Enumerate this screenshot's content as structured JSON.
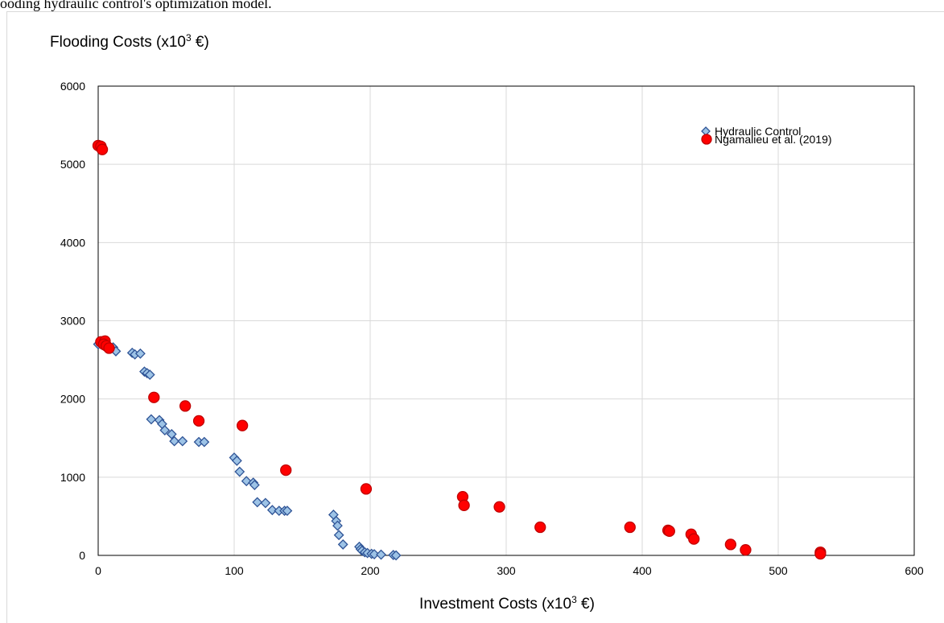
{
  "caption_text": "ooding hydraulic control's optimization model.",
  "chart_data": {
    "type": "scatter",
    "title": "",
    "ylabel_main": "Flooding Costs (x10",
    "ylabel_sup": "3",
    "ylabel_tail": " €)",
    "xlabel_main": "Investment Costs (x10",
    "xlabel_sup": "3",
    "xlabel_tail": " €)",
    "xlim": [
      0,
      600
    ],
    "ylim": [
      0,
      6000
    ],
    "x_ticks": [
      "0",
      "100",
      "200",
      "300",
      "400",
      "500",
      "600"
    ],
    "y_ticks": [
      "0",
      "1000",
      "2000",
      "3000",
      "4000",
      "5000",
      "6000"
    ],
    "grid": true,
    "legend_position": "top-right",
    "series": [
      {
        "name": "Hydraulic Control",
        "marker": "diamond",
        "fill": "#9dc3e6",
        "stroke": "#2f5496",
        "points": [
          [
            0,
            2700
          ],
          [
            3,
            2690
          ],
          [
            5,
            2700
          ],
          [
            7,
            2690
          ],
          [
            11,
            2660
          ],
          [
            13,
            2610
          ],
          [
            25,
            2590
          ],
          [
            27,
            2570
          ],
          [
            31,
            2580
          ],
          [
            34,
            2350
          ],
          [
            36,
            2330
          ],
          [
            38,
            2310
          ],
          [
            39,
            1740
          ],
          [
            45,
            1730
          ],
          [
            47,
            1680
          ],
          [
            49,
            1600
          ],
          [
            54,
            1550
          ],
          [
            56,
            1460
          ],
          [
            62,
            1460
          ],
          [
            74,
            1450
          ],
          [
            78,
            1450
          ],
          [
            100,
            1250
          ],
          [
            102,
            1210
          ],
          [
            104,
            1070
          ],
          [
            109,
            950
          ],
          [
            114,
            930
          ],
          [
            115,
            900
          ],
          [
            117,
            680
          ],
          [
            123,
            670
          ],
          [
            128,
            580
          ],
          [
            133,
            570
          ],
          [
            137,
            570
          ],
          [
            139,
            570
          ],
          [
            173,
            520
          ],
          [
            175,
            440
          ],
          [
            176,
            380
          ],
          [
            177,
            260
          ],
          [
            180,
            140
          ],
          [
            192,
            110
          ],
          [
            193,
            80
          ],
          [
            194,
            60
          ],
          [
            196,
            40
          ],
          [
            198,
            30
          ],
          [
            201,
            20
          ],
          [
            203,
            15
          ],
          [
            208,
            10
          ],
          [
            217,
            5
          ],
          [
            219,
            0
          ]
        ]
      },
      {
        "name": "Ngamalieu et al. (2019)",
        "marker": "circle",
        "fill": "#ff0000",
        "stroke": "#c00000",
        "points": [
          [
            0,
            5240
          ],
          [
            2,
            5230
          ],
          [
            3,
            5190
          ],
          [
            2,
            2730
          ],
          [
            5,
            2740
          ],
          [
            4,
            2700
          ],
          [
            6,
            2680
          ],
          [
            8,
            2650
          ],
          [
            41,
            2020
          ],
          [
            64,
            1910
          ],
          [
            74,
            1720
          ],
          [
            106,
            1660
          ],
          [
            138,
            1090
          ],
          [
            197,
            850
          ],
          [
            268,
            750
          ],
          [
            269,
            640
          ],
          [
            295,
            620
          ],
          [
            325,
            360
          ],
          [
            391,
            360
          ],
          [
            419,
            320
          ],
          [
            420,
            310
          ],
          [
            436,
            270
          ],
          [
            438,
            210
          ],
          [
            465,
            140
          ],
          [
            476,
            70
          ],
          [
            531,
            40
          ],
          [
            531,
            20
          ]
        ]
      }
    ]
  }
}
